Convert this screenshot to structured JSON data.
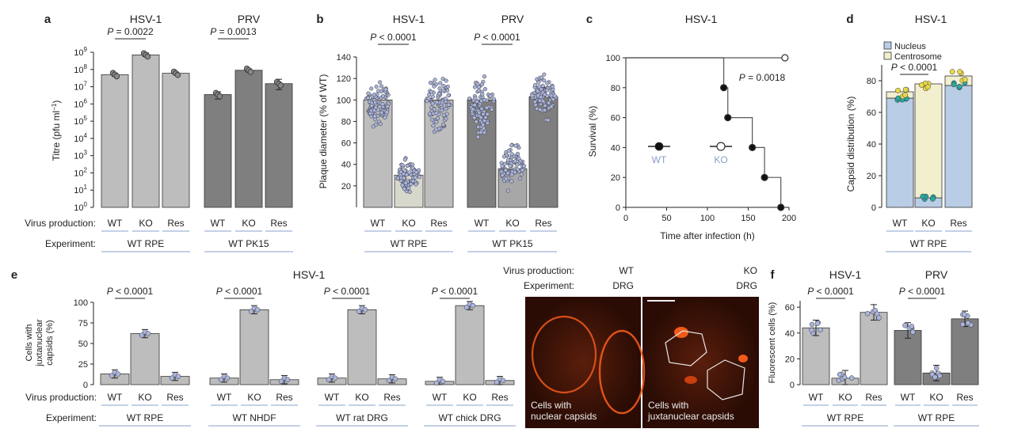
{
  "colors": {
    "bar_light": "#bdbdbd",
    "bar_dark": "#7f7f7f",
    "bar_kob": "#d7d7cc",
    "dot_blue": "#aab4dc",
    "dot_teal": "#2aa7a0",
    "dot_yellow": "#e8d84a",
    "nucleus": "#b9cde6",
    "centrosome": "#f2efcf",
    "underline": "#9fb3d6",
    "micro_bg": "#3a140a",
    "micro_fg": "#f05a1a"
  },
  "common": {
    "wt": "WT",
    "ko": "KO",
    "res": "Res",
    "vp_label": "Virus production:",
    "exp_label": "Experiment:"
  },
  "panel_a": {
    "letter": "a",
    "ylabel_main": "Titre (pfu ml",
    "ylabel_sup": "−1",
    "ylabel_end": ")",
    "tick_base": "10",
    "tick_exps": [
      "0",
      "1",
      "2",
      "3",
      "4",
      "5",
      "6",
      "7",
      "8",
      "9"
    ],
    "groups": [
      {
        "title": "HSV-1",
        "pval": "P = 0.0022",
        "experiment": "WT RPE"
      },
      {
        "title": "PRV",
        "pval": "P = 0.0013",
        "experiment": "WT PK15"
      }
    ]
  },
  "panel_b": {
    "letter": "b",
    "ylabel": "Plaque diameter (% of WT)",
    "ticks": [
      "20",
      "40",
      "60",
      "80",
      "100",
      "120",
      "140"
    ],
    "groups": [
      {
        "title": "HSV-1",
        "pval": "P < 0.0001",
        "experiment": "WT RPE"
      },
      {
        "title": "PRV",
        "pval": "P < 0.0001",
        "experiment": "WT PK15"
      }
    ]
  },
  "panel_c": {
    "letter": "c",
    "title": "HSV-1",
    "ylabel": "Survival (%)",
    "xlabel": "Time after infection (h)",
    "yticks": [
      "0",
      "20",
      "40",
      "60",
      "80",
      "100"
    ],
    "xticks": [
      "0",
      "50",
      "100",
      "150",
      "200"
    ],
    "pval": "P = 0.0018",
    "legend_wt": "WT",
    "legend_ko": "KO"
  },
  "panel_d": {
    "letter": "d",
    "title": "HSV-1",
    "ylabel": "Capsid distribution (%)",
    "yticks": [
      "0",
      "20",
      "40",
      "60",
      "80"
    ],
    "legend": [
      "Nucleus",
      "Centrosome"
    ],
    "pval": "P < 0.0001",
    "experiment": "WT RPE"
  },
  "panel_e": {
    "letter": "e",
    "title": "HSV-1",
    "ylabel_lines": [
      "Cells with",
      "juxtanuclear",
      "capsids (%)"
    ],
    "yticks": [
      "0",
      "25",
      "50",
      "75",
      "100"
    ],
    "pval": "P < 0.0001",
    "experiments": [
      "WT RPE",
      "WT NHDF",
      "WT rat DRG",
      "WT chick DRG"
    ]
  },
  "micrographs": {
    "vp_label": "Virus production:",
    "exp_label": "Experiment:",
    "left": {
      "vp": "WT",
      "exp": "DRG",
      "caption": [
        "Cells with",
        "nuclear capsids"
      ]
    },
    "right": {
      "vp": "KO",
      "exp": "DRG",
      "caption": [
        "Cells with",
        "juxtanuclear capsids"
      ]
    }
  },
  "panel_f": {
    "letter": "f",
    "ylabel": "Fluorescent cells (%)",
    "yticks": [
      "0",
      "20",
      "40",
      "60"
    ],
    "groups": [
      {
        "title": "HSV-1",
        "pval": "P < 0.0001",
        "experiment": "WT RPE"
      },
      {
        "title": "PRV",
        "pval": "P < 0.0001",
        "experiment": "WT RPE"
      }
    ]
  },
  "chart_data": [
    {
      "panel": "a",
      "type": "bar",
      "categories": [
        "WT",
        "KO",
        "Res"
      ],
      "log_scale": true,
      "ylim": [
        1,
        1000000000
      ],
      "series": [
        {
          "name": "HSV-1",
          "values": [
            50000000,
            700000000,
            60000000
          ]
        },
        {
          "name": "PRV",
          "values": [
            3500000,
            90000000,
            15000000
          ]
        }
      ]
    },
    {
      "panel": "b",
      "type": "bar",
      "categories": [
        "WT",
        "KO",
        "Res"
      ],
      "ylim": [
        0,
        140
      ],
      "series": [
        {
          "name": "HSV-1",
          "values": [
            100,
            30,
            100
          ]
        },
        {
          "name": "PRV",
          "values": [
            100,
            36,
            103
          ]
        }
      ]
    },
    {
      "panel": "c",
      "type": "line",
      "x_range": [
        0,
        200
      ],
      "ylim": [
        0,
        100
      ],
      "series": [
        {
          "name": "WT",
          "x": [
            0,
            120,
            120,
            125,
            125,
            155,
            155,
            170,
            170,
            190,
            190
          ],
          "y": [
            100,
            100,
            80,
            80,
            60,
            60,
            40,
            40,
            20,
            20,
            0
          ],
          "points": [
            [
              120,
              80
            ],
            [
              125,
              60
            ],
            [
              155,
              40
            ],
            [
              170,
              20
            ],
            [
              190,
              0
            ]
          ]
        },
        {
          "name": "KO",
          "x": [
            0,
            195
          ],
          "y": [
            100,
            100
          ],
          "points": [
            [
              195,
              100
            ]
          ]
        }
      ]
    },
    {
      "panel": "d",
      "type": "bar",
      "categories": [
        "WT",
        "KO",
        "Res"
      ],
      "ylim": [
        0,
        90
      ],
      "series": [
        {
          "name": "Nucleus",
          "values": [
            69,
            6,
            77
          ]
        },
        {
          "name": "Centrosome",
          "values": [
            4,
            72,
            6
          ]
        }
      ]
    },
    {
      "panel": "e",
      "type": "bar",
      "ylim": [
        0,
        100
      ],
      "groups": [
        {
          "experiment": "WT RPE",
          "categories": [
            "WT",
            "KO",
            "Res"
          ],
          "values": [
            13,
            62,
            10
          ]
        },
        {
          "experiment": "WT NHDF",
          "categories": [
            "WT",
            "KO",
            "Res"
          ],
          "values": [
            8,
            91,
            6
          ]
        },
        {
          "experiment": "WT rat DRG",
          "categories": [
            "WT",
            "KO",
            "Res"
          ],
          "values": [
            8,
            91,
            7
          ]
        },
        {
          "experiment": "WT chick DRG",
          "categories": [
            "WT",
            "KO",
            "Res"
          ],
          "values": [
            4,
            96,
            5
          ]
        }
      ]
    },
    {
      "panel": "f",
      "type": "bar",
      "categories": [
        "WT",
        "KO",
        "Res"
      ],
      "ylim": [
        0,
        65
      ],
      "series": [
        {
          "name": "HSV-1",
          "values": [
            44,
            5,
            56
          ]
        },
        {
          "name": "PRV",
          "values": [
            42,
            9,
            51
          ]
        }
      ]
    }
  ]
}
